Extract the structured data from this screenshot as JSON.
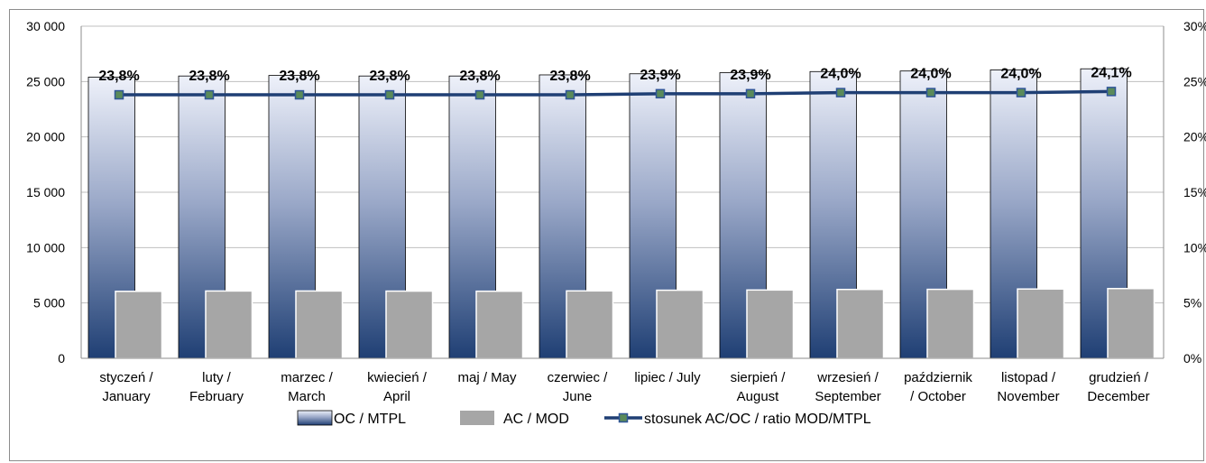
{
  "chart_data": {
    "type": "bar",
    "categories": [
      [
        "styczeń /",
        "January"
      ],
      [
        "luty /",
        "February"
      ],
      [
        "marzec /",
        "March"
      ],
      [
        "kwiecień /",
        "April"
      ],
      [
        "maj / May"
      ],
      [
        "czerwiec /",
        "June"
      ],
      [
        "lipiec / July"
      ],
      [
        "sierpień /",
        "August"
      ],
      [
        "wrzesień /",
        "September"
      ],
      [
        "październik",
        "/ October"
      ],
      [
        "listopad /",
        "November"
      ],
      [
        "grudzień /",
        "December"
      ]
    ],
    "series": [
      {
        "name": "OC / MTPL",
        "kind": "bar",
        "axis": "left",
        "values": [
          25400,
          25500,
          25550,
          25500,
          25500,
          25600,
          25700,
          25800,
          25900,
          25950,
          26050,
          26150
        ]
      },
      {
        "name": "AC / MOD",
        "kind": "bar",
        "axis": "left",
        "values": [
          6050,
          6080,
          6080,
          6070,
          6060,
          6090,
          6150,
          6170,
          6220,
          6230,
          6260,
          6300
        ]
      },
      {
        "name": "stosunek AC/OC / ratio MOD/MTPL",
        "kind": "line",
        "axis": "right",
        "values": [
          23.8,
          23.8,
          23.8,
          23.8,
          23.8,
          23.8,
          23.9,
          23.9,
          24.0,
          24.0,
          24.0,
          24.1
        ],
        "labels": [
          "23,8%",
          "23,8%",
          "23,8%",
          "23,8%",
          "23,8%",
          "23,8%",
          "23,9%",
          "23,9%",
          "24,0%",
          "24,0%",
          "24,0%",
          "24,1%"
        ]
      }
    ],
    "ylim": [
      0,
      30000
    ],
    "y_ticks": [
      0,
      5000,
      10000,
      15000,
      20000,
      25000,
      30000
    ],
    "y_tick_labels": [
      "0",
      "5 000",
      "10 000",
      "15 000",
      "20 000",
      "25 000",
      "30 000"
    ],
    "y2lim": [
      0,
      30
    ],
    "y2_ticks": [
      0,
      5,
      10,
      15,
      20,
      25,
      30
    ],
    "y2_tick_labels": [
      "0%",
      "5%",
      "10%",
      "15%",
      "20%",
      "25%",
      "30%"
    ],
    "grid": true,
    "legend_position": "bottom",
    "colors": {
      "bar_top": "#eef1fa",
      "bar_bottom": "#1f3f74",
      "bar_stroke": "#000000",
      "mod": "#a6a6a6",
      "line": "#1f3f74",
      "marker_fill": "#5a8a5a",
      "marker_stroke": "#2f5597",
      "grid": "#bfbfbf"
    }
  }
}
